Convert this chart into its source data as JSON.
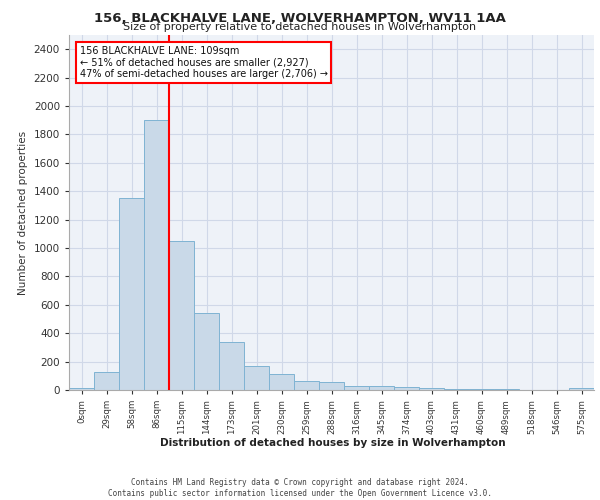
{
  "title_line1": "156, BLACKHALVE LANE, WOLVERHAMPTON, WV11 1AA",
  "title_line2": "Size of property relative to detached houses in Wolverhampton",
  "xlabel": "Distribution of detached houses by size in Wolverhampton",
  "ylabel": "Number of detached properties",
  "annotation_line1": "156 BLACKHALVE LANE: 109sqm",
  "annotation_line2": "← 51% of detached houses are smaller (2,927)",
  "annotation_line3": "47% of semi-detached houses are larger (2,706) →",
  "bar_labels": [
    "0sqm",
    "29sqm",
    "58sqm",
    "86sqm",
    "115sqm",
    "144sqm",
    "173sqm",
    "201sqm",
    "230sqm",
    "259sqm",
    "288sqm",
    "316sqm",
    "345sqm",
    "374sqm",
    "403sqm",
    "431sqm",
    "460sqm",
    "489sqm",
    "518sqm",
    "546sqm",
    "575sqm"
  ],
  "bar_values": [
    15,
    125,
    1350,
    1900,
    1050,
    540,
    335,
    170,
    110,
    60,
    55,
    30,
    25,
    20,
    15,
    10,
    5,
    10,
    3,
    2,
    15
  ],
  "bar_color": "#c9d9e8",
  "bar_edge_color": "#7fb3d3",
  "red_line_index": 3,
  "ylim": [
    0,
    2500
  ],
  "yticks": [
    0,
    200,
    400,
    600,
    800,
    1000,
    1200,
    1400,
    1600,
    1800,
    2000,
    2200,
    2400
  ],
  "grid_color": "#d0d8e8",
  "background_color": "#eef2f8",
  "footer_line1": "Contains HM Land Registry data © Crown copyright and database right 2024.",
  "footer_line2": "Contains public sector information licensed under the Open Government Licence v3.0."
}
